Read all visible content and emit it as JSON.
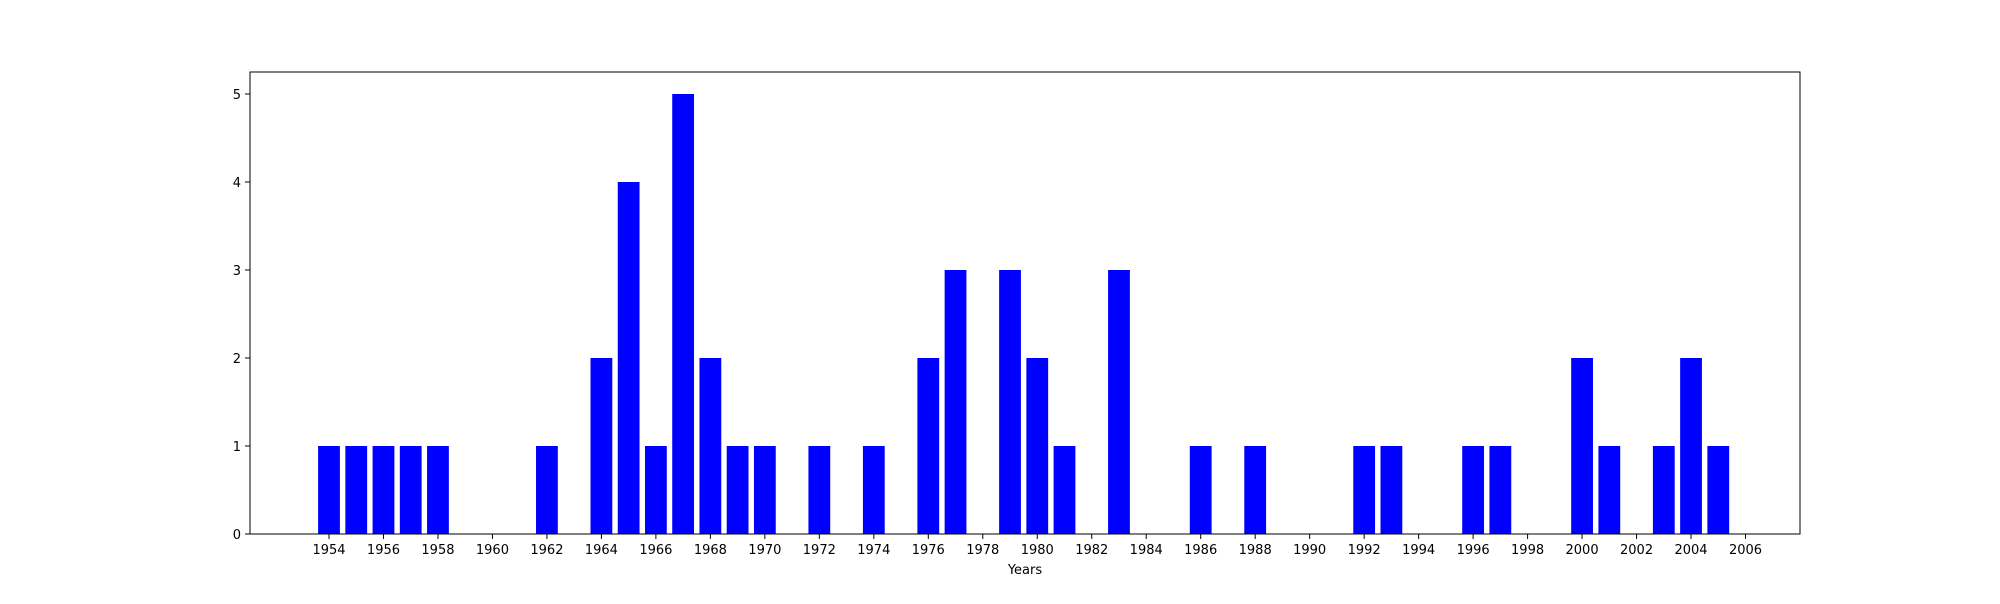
{
  "chart_data": {
    "type": "bar",
    "title": "",
    "xlabel": "Years",
    "ylabel": "",
    "bar_color": "#0000ff",
    "x": [
      1954,
      1955,
      1956,
      1957,
      1958,
      1962,
      1964,
      1965,
      1966,
      1967,
      1968,
      1969,
      1970,
      1972,
      1974,
      1976,
      1977,
      1979,
      1980,
      1981,
      1983,
      1986,
      1988,
      1992,
      1993,
      1996,
      1997,
      2000,
      2001,
      2003,
      2004,
      2005
    ],
    "values": [
      1,
      1,
      1,
      1,
      1,
      1,
      2,
      4,
      1,
      5,
      2,
      1,
      1,
      1,
      1,
      2,
      3,
      3,
      2,
      1,
      3,
      1,
      1,
      1,
      1,
      1,
      1,
      2,
      1,
      1,
      2,
      1
    ],
    "xticks": [
      1954,
      1956,
      1958,
      1960,
      1962,
      1964,
      1966,
      1968,
      1970,
      1972,
      1974,
      1976,
      1978,
      1980,
      1982,
      1984,
      1986,
      1988,
      1990,
      1992,
      1994,
      1996,
      1998,
      2000,
      2002,
      2004,
      2006
    ],
    "yticks": [
      0,
      1,
      2,
      3,
      4,
      5
    ],
    "xlim": [
      1951.1,
      2008.0
    ],
    "ylim": [
      0,
      5.25
    ],
    "grid": false
  }
}
